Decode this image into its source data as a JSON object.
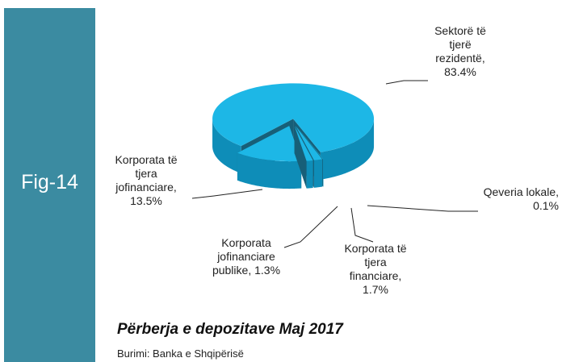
{
  "figure_tag": "Fig-14",
  "chart_data": {
    "type": "pie3d",
    "title": "Përberja e depozitave Maj 2017",
    "source": "Burimi: Banka e Shqipërisë",
    "categories": [
      "Sektorë të tjerë rezidentë,",
      "Qeveria lokale,",
      "Korporata të tjera financiare,",
      "Korporata jofinanciare publike,",
      "Korporata të tjera jofinanciare,"
    ],
    "values": [
      83.4,
      0.1,
      1.7,
      1.3,
      13.5
    ],
    "value_labels": [
      "83.4%",
      "0.1%",
      "1.7%",
      "1.3%",
      "13.5%"
    ],
    "color": "#1db7e6"
  }
}
